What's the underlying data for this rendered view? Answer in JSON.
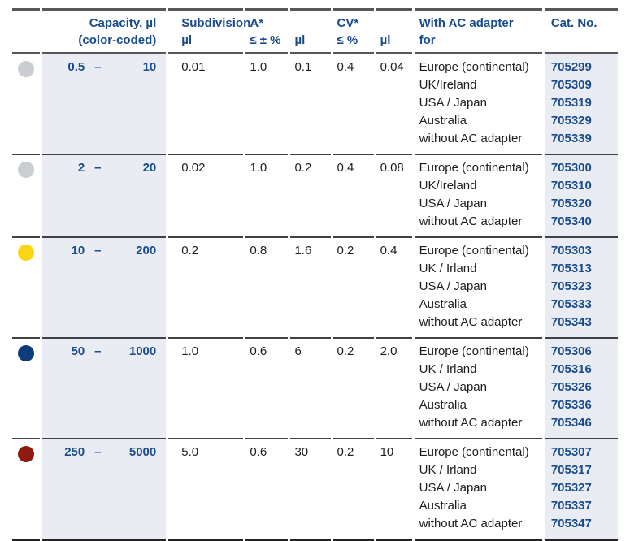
{
  "colors": {
    "accent_blue": "#1a4b8c",
    "column_highlight_bg": "#e9edf3",
    "rule_gray": "#55575a",
    "rule_mid": "#3f4143",
    "rule_bottom": "#232323",
    "body_text": "#1d1d1b",
    "dot_gray": "#cacdd1",
    "dot_yellow": "#f9d616",
    "dot_dark_blue": "#0c3c7c",
    "dot_dark_red": "#8e1a10"
  },
  "header": {
    "capacity": {
      "line1": "Capacity, µl",
      "line2": "(color-coded)"
    },
    "subdivision": {
      "line1": "Subdivision",
      "line2": "µl"
    },
    "accuracy": {
      "line1": "A*",
      "line2": "≤ ± %"
    },
    "accuracy_ul": {
      "line1": "",
      "line2": "µl"
    },
    "cv": {
      "line1": "CV*",
      "line2": "≤ %"
    },
    "cv_ul": {
      "line1": "",
      "line2": "µl"
    },
    "adapter": {
      "line1": "With AC adapter",
      "line2": "for"
    },
    "cat_no": {
      "line1": "Cat. No.",
      "line2": ""
    }
  },
  "rows": [
    {
      "dot_color": "#cacdd1",
      "dot_label": "gray",
      "cap_min": "0.5",
      "dash": "–",
      "cap_max": "10",
      "subdivision": "0.01",
      "a_pct": "1.0",
      "a_ul": "0.1",
      "cv_pct": "0.4",
      "cv_ul": "0.04",
      "adapters": [
        {
          "label": "Europe (continental)",
          "cat": "705299"
        },
        {
          "label": "UK/Ireland",
          "cat": "705309"
        },
        {
          "label": "USA / Japan",
          "cat": "705319"
        },
        {
          "label": "Australia",
          "cat": "705329"
        },
        {
          "label": "without AC adapter",
          "cat": "705339"
        }
      ]
    },
    {
      "dot_color": "#cacdd1",
      "dot_label": "gray",
      "cap_min": "2",
      "dash": "–",
      "cap_max": "20",
      "subdivision": "0.02",
      "a_pct": "1.0",
      "a_ul": "0.2",
      "cv_pct": "0.4",
      "cv_ul": "0.08",
      "adapters": [
        {
          "label": "Europe (continental)",
          "cat": "705300"
        },
        {
          "label": "UK/Ireland",
          "cat": "705310"
        },
        {
          "label": "USA / Japan",
          "cat": "705320"
        },
        {
          "label": "without AC adapter",
          "cat": "705340"
        }
      ]
    },
    {
      "dot_color": "#f9d616",
      "dot_label": "yellow",
      "cap_min": "10",
      "dash": "–",
      "cap_max": "200",
      "subdivision": "0.2",
      "a_pct": "0.8",
      "a_ul": "1.6",
      "cv_pct": "0.2",
      "cv_ul": "0.4",
      "adapters": [
        {
          "label": "Europe (continental)",
          "cat": "705303"
        },
        {
          "label": "UK / Irland",
          "cat": "705313"
        },
        {
          "label": "USA / Japan",
          "cat": "705323"
        },
        {
          "label": "Australia",
          "cat": "705333"
        },
        {
          "label": "without AC adapter",
          "cat": "705343"
        }
      ]
    },
    {
      "dot_color": "#0c3c7c",
      "dot_label": "dark-blue",
      "cap_min": "50",
      "dash": "–",
      "cap_max": "1000",
      "subdivision": "1.0",
      "a_pct": "0.6",
      "a_ul": "6",
      "cv_pct": "0.2",
      "cv_ul": "2.0",
      "adapters": [
        {
          "label": "Europe (continental)",
          "cat": "705306"
        },
        {
          "label": "UK / Irland",
          "cat": "705316"
        },
        {
          "label": "USA / Japan",
          "cat": "705326"
        },
        {
          "label": "Australia",
          "cat": "705336"
        },
        {
          "label": "without AC adapter",
          "cat": "705346"
        }
      ]
    },
    {
      "dot_color": "#8e1a10",
      "dot_label": "dark-red",
      "cap_min": "250",
      "dash": "–",
      "cap_max": "5000",
      "subdivision": "5.0",
      "a_pct": "0.6",
      "a_ul": "30",
      "cv_pct": "0.2",
      "cv_ul": "10",
      "adapters": [
        {
          "label": "Europe (continental)",
          "cat": "705307"
        },
        {
          "label": "UK / Irland",
          "cat": "705317"
        },
        {
          "label": "USA / Japan",
          "cat": "705327"
        },
        {
          "label": "Australia",
          "cat": "705337"
        },
        {
          "label": "without AC adapter",
          "cat": "705347"
        }
      ]
    }
  ]
}
